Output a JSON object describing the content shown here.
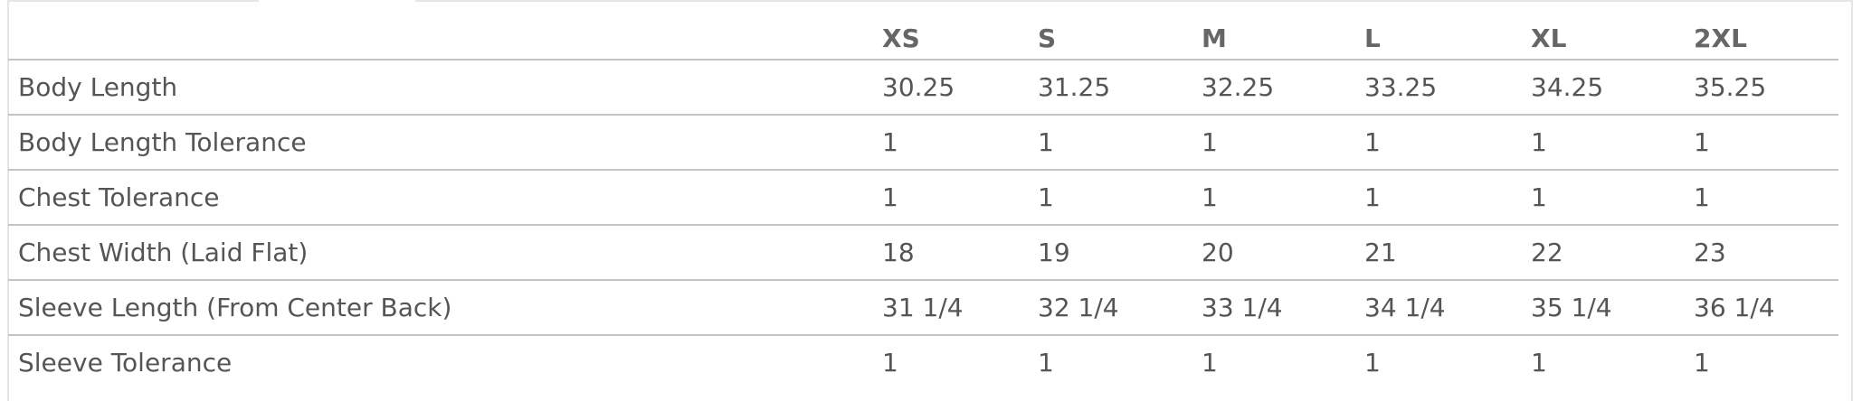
{
  "size_chart": {
    "columns": [
      "",
      "XS",
      "S",
      "M",
      "L",
      "XL",
      "2XL"
    ],
    "rows": [
      {
        "label": "Body Length",
        "values": [
          "30.25",
          "31.25",
          "32.25",
          "33.25",
          "34.25",
          "35.25"
        ]
      },
      {
        "label": "Body Length Tolerance",
        "values": [
          "1",
          "1",
          "1",
          "1",
          "1",
          "1"
        ]
      },
      {
        "label": "Chest Tolerance",
        "values": [
          "1",
          "1",
          "1",
          "1",
          "1",
          "1"
        ]
      },
      {
        "label": "Chest Width (Laid Flat)",
        "values": [
          "18",
          "19",
          "20",
          "21",
          "22",
          "23"
        ]
      },
      {
        "label": "Sleeve Length (From Center Back)",
        "values": [
          "31 1/4",
          "32 1/4",
          "33 1/4",
          "34 1/4",
          "35 1/4",
          "36 1/4"
        ]
      },
      {
        "label": "Sleeve Tolerance",
        "values": [
          "1",
          "1",
          "1",
          "1",
          "1",
          "1"
        ]
      }
    ]
  }
}
